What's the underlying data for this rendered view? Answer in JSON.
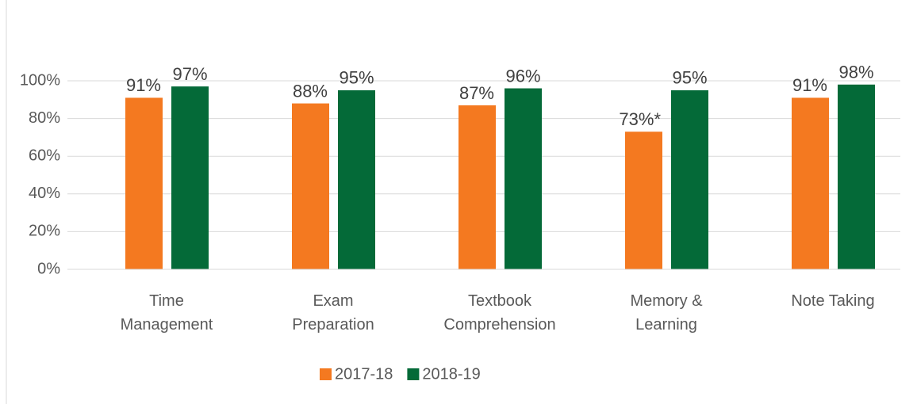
{
  "chart_data": {
    "type": "bar",
    "categories": [
      "Time Management",
      "Exam Preparation",
      "Textbook Comprehension",
      "Memory & Learning",
      "Note Taking"
    ],
    "series": [
      {
        "name": "2017-18",
        "color": "#f47920",
        "values": [
          91,
          88,
          87,
          73,
          91
        ],
        "value_labels": [
          "91%",
          "88%",
          "87%",
          "73%*",
          "91%"
        ]
      },
      {
        "name": "2018-19",
        "color": "#046a38",
        "values": [
          97,
          95,
          96,
          95,
          98
        ],
        "value_labels": [
          "97%",
          "95%",
          "96%",
          "95%",
          "98%"
        ]
      }
    ],
    "ylim": [
      0,
      100
    ],
    "yticks": [
      {
        "value": 0,
        "label": "0%"
      },
      {
        "value": 20,
        "label": "20%"
      },
      {
        "value": 40,
        "label": "40%"
      },
      {
        "value": 60,
        "label": "60%"
      },
      {
        "value": 80,
        "label": "80%"
      },
      {
        "value": 100,
        "label": "100%"
      }
    ],
    "grid": true,
    "legend": "bottom"
  }
}
